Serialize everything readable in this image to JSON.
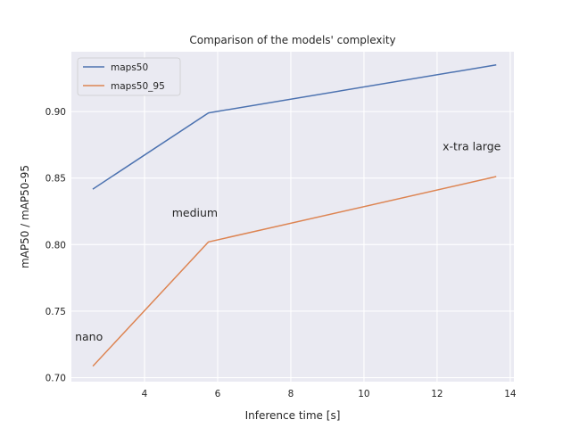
{
  "chart_data": {
    "type": "line",
    "title": "Comparison of the models' complexity",
    "xlabel": "Inference time [s]",
    "ylabel": "mAP50 / mAP50-95",
    "xlim": [
      2.0,
      14.1
    ],
    "ylim": [
      0.697,
      0.945
    ],
    "xticks": [
      4,
      6,
      8,
      10,
      12,
      14
    ],
    "yticks": [
      0.7,
      0.75,
      0.8,
      0.85,
      0.9
    ],
    "grid": true,
    "legend": "upper-left",
    "series": [
      {
        "name": "maps50",
        "color": "#4c72b0",
        "x": [
          2.6,
          5.75,
          13.6
        ],
        "y": [
          0.842,
          0.899,
          0.935
        ]
      },
      {
        "name": "maps50_95",
        "color": "#dd8452",
        "x": [
          2.6,
          5.75,
          13.6
        ],
        "y": [
          0.709,
          0.802,
          0.851
        ]
      }
    ],
    "annotations": [
      {
        "text": "nano",
        "x": 2.1,
        "y": 0.728
      },
      {
        "text": "medium",
        "x": 4.75,
        "y": 0.821
      },
      {
        "text": "x-tra large",
        "x": 12.15,
        "y": 0.871
      }
    ]
  }
}
